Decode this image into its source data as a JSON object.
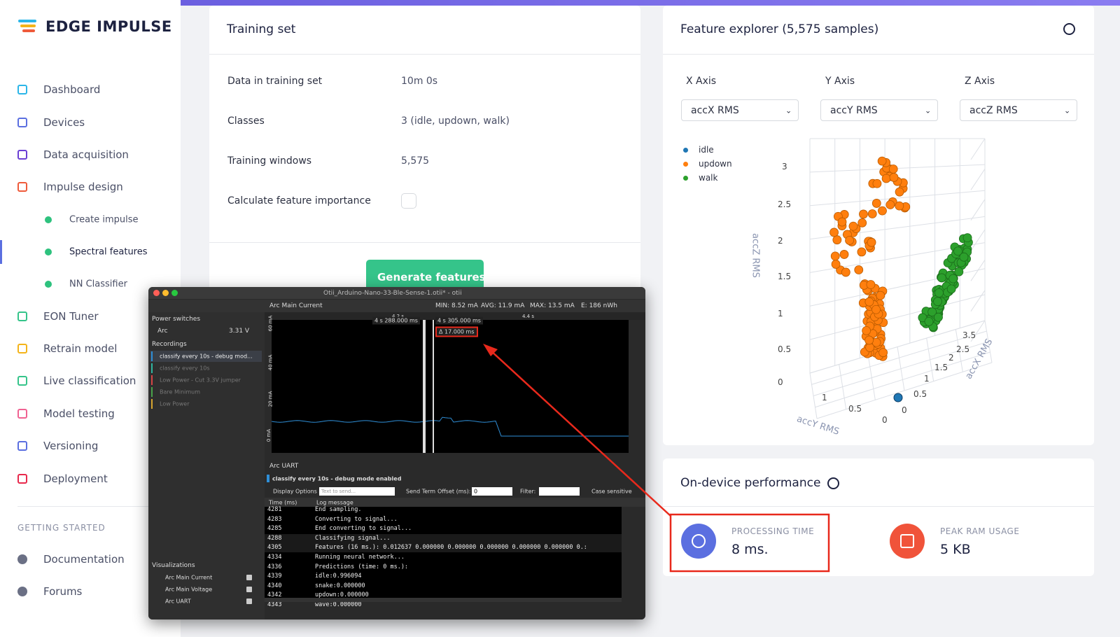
{
  "sidebar": {
    "logo": "EDGE IMPULSE",
    "nav": [
      "Dashboard",
      "Devices",
      "Data acquisition",
      "Impulse design",
      "Create impulse",
      "Spectral features",
      "NN Classifier",
      "EON Tuner",
      "Retrain model",
      "Live classification",
      "Model testing",
      "Versioning",
      "Deployment"
    ],
    "section": "GETTING STARTED",
    "links": [
      "Documentation",
      "Forums"
    ]
  },
  "training_set": {
    "title": "Training set",
    "rows": [
      [
        "Data in training set",
        "10m 0s"
      ],
      [
        "Classes",
        "3 (idle, updown, walk)"
      ],
      [
        "Training windows",
        "5,575"
      ],
      [
        "Calculate feature importance"
      ]
    ],
    "button": "Generate features"
  },
  "feature_explorer": {
    "title": "Feature explorer (5,575 samples)",
    "axes": [
      [
        "X Axis",
        "accX RMS"
      ],
      [
        "Y Axis",
        "accY RMS"
      ],
      [
        "Z Axis",
        "accZ RMS"
      ]
    ],
    "legend": [
      "idle",
      "updown",
      "walk"
    ],
    "plot": {
      "z_title": "accZ RMS",
      "z_ticks": [
        "3",
        "2.5",
        "2",
        "1.5",
        "1",
        "0.5",
        "0"
      ],
      "x_title": "accX RMS",
      "x_ticks": [
        "3.5",
        "2.5",
        "2",
        "1.5",
        "1",
        "0.5",
        "0"
      ],
      "y_title": "accY RMS",
      "y_ticks": [
        "1",
        "0.5",
        "0"
      ]
    }
  },
  "performance": {
    "title": "On-device performance",
    "metrics": [
      [
        "PROCESSING TIME",
        "8 ms."
      ],
      [
        "PEAK RAM USAGE",
        "5 KB"
      ]
    ]
  },
  "otii": {
    "title": "Otii_Arduino-Nano-33-Ble-Sense-1.otii* - otii",
    "power_switches": "Power switches",
    "arc": "Arc",
    "voltage": "3.31 V",
    "recordings": "Recordings",
    "recording_list": [
      "classify every 10s - debug mod...",
      "classify every 10s",
      "Low Power - Cut 3.3V jumper",
      "Bare Minimum",
      "Low Power"
    ],
    "channel": "Arc Main Current",
    "stats": [
      "MIN: 8.52 mA",
      "AVG: 11.9 mA",
      "MAX: 13.5 mA",
      "E: 186 nWh"
    ],
    "time_ticks": [
      "4.2 s",
      "4.4 s"
    ],
    "y_labels": [
      "60 mA",
      "40 mA",
      "20 mA",
      "0 mA"
    ],
    "cursor_a": "4 s 288.000 ms",
    "cursor_b": "4 s 305.000 ms",
    "delta": "Δ 17.000 ms",
    "uart": "Arc UART",
    "uart_recording": "classify every 10s - debug mode enabled",
    "display_options": "Display Options",
    "send_placeholder": "Text to send...",
    "send_term": "Send Term",
    "offset_label": "Offset (ms):",
    "offset_value": "0",
    "filter": "Filter:",
    "case_sensitive": "Case sensitive",
    "log_headers": [
      "Time (ms)",
      "Log message"
    ],
    "log": [
      [
        "4281",
        "End sampling."
      ],
      [
        "4283",
        "Converting to signal..."
      ],
      [
        "4285",
        "End converting to signal..."
      ],
      [
        "4288",
        "Classifying signal..."
      ],
      [
        "4305",
        "Features (16 ms.): 0.012637 0.000000 0.000000 0.000000 0.000000 0.000000 0.:"
      ],
      [
        "4334",
        "Running neural network..."
      ],
      [
        "4336",
        "Predictions (time: 0 ms.):"
      ],
      [
        "4339",
        "idle:0.996094"
      ],
      [
        "4340",
        "snake:0.000000"
      ],
      [
        "4342",
        "updown:0.000000"
      ],
      [
        "4343",
        "wave:0.000000"
      ]
    ],
    "visualizations": "Visualizations",
    "vis_list": [
      "Arc Main Current",
      "Arc Main Voltage",
      "Arc UART"
    ]
  }
}
